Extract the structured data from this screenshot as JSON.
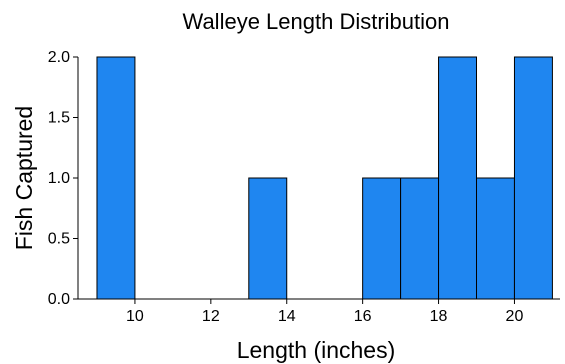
{
  "chart_data": {
    "type": "bar",
    "title": "Walleye Length Distribution",
    "xlabel": "Length (inches)",
    "ylabel": "Fish Captured",
    "bin_edges": [
      9,
      10,
      11,
      12,
      13,
      14,
      15,
      16,
      17,
      18,
      19,
      20,
      21
    ],
    "values": [
      2,
      0,
      0,
      0,
      1,
      0,
      0,
      1,
      1,
      2,
      1,
      2
    ],
    "xlim": [
      8.5,
      21.2
    ],
    "ylim": [
      0,
      2.0
    ],
    "xticks": [
      10,
      12,
      14,
      16,
      18,
      20
    ],
    "yticks": [
      "0.0",
      "0.5",
      "1.0",
      "1.5",
      "2.0"
    ],
    "grid": false,
    "bar_color": "#1f86f0"
  }
}
